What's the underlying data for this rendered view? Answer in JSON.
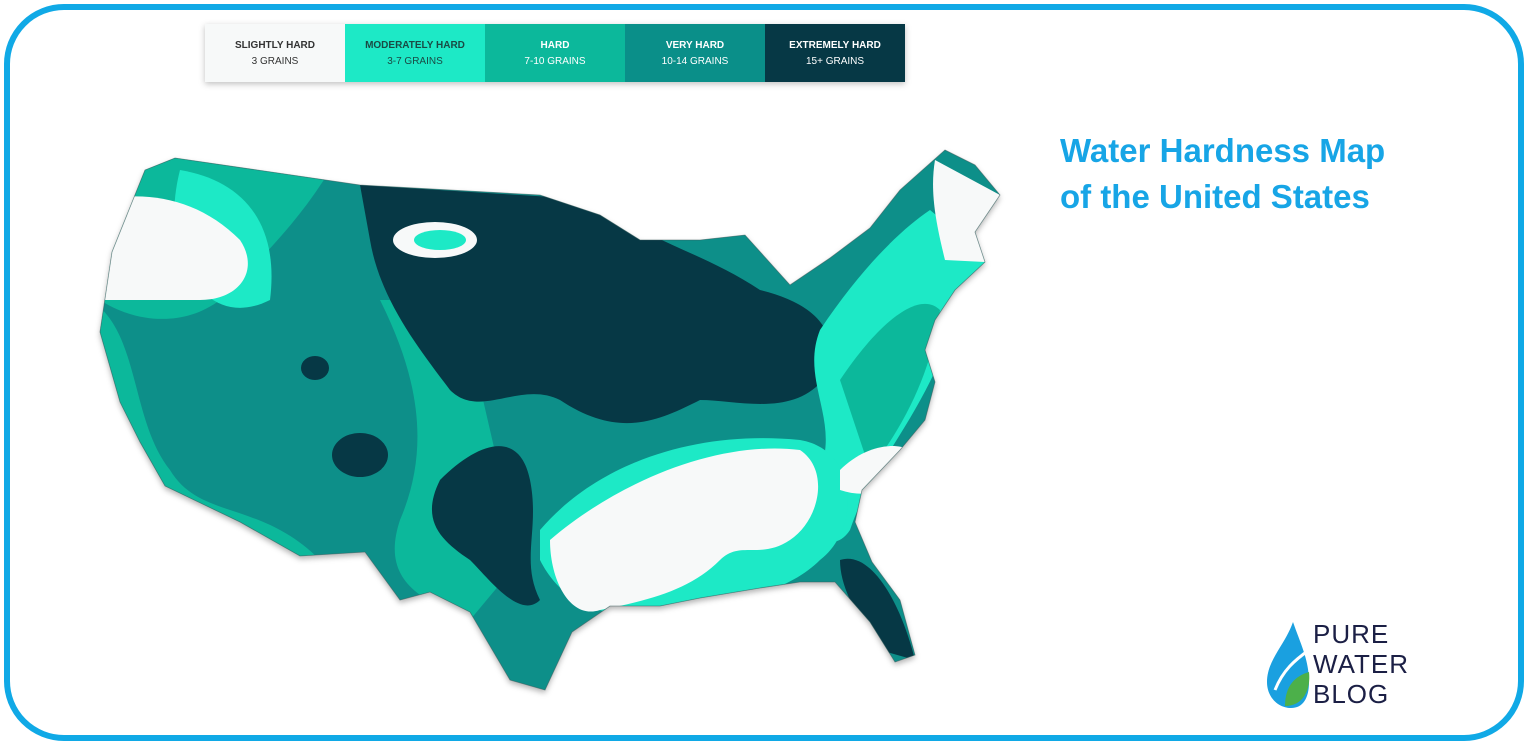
{
  "title": {
    "line1": "Water Hardness Map",
    "line2": "of the United States"
  },
  "legend": [
    {
      "label": "SLIGHTLY HARD",
      "range": "3 GRAINS",
      "color": "#f7f9f9",
      "text_color": "#333333"
    },
    {
      "label": "MODERATELY HARD",
      "range": "3-7 GRAINS",
      "color": "#1de9c6",
      "text_color": "#1a4a44"
    },
    {
      "label": "HARD",
      "range": "7-10 GRAINS",
      "color": "#0cb89b",
      "text_color": "#ffffff"
    },
    {
      "label": "VERY HARD",
      "range": "10-14 GRAINS",
      "color": "#0a8f89",
      "text_color": "#ffffff"
    },
    {
      "label": "EXTREMELY HARD",
      "range": "15+ GRAINS",
      "color": "#063845",
      "text_color": "#ffffff"
    }
  ],
  "logo": {
    "line1": "PURE",
    "line2": "WATER",
    "line3": "BLOG"
  },
  "colors": {
    "frame": "#10a9e6",
    "title": "#17a5e6"
  }
}
